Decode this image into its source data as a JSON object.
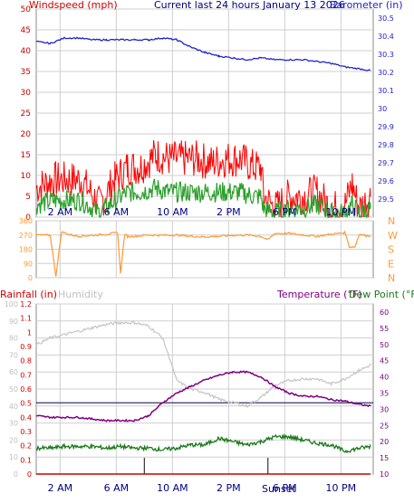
{
  "page": {
    "header": {
      "left": "Windspeed (mph)",
      "center": "Current last 24 hours January 13 2026",
      "right": "Barometer (in)"
    },
    "bottom_header": {
      "rainfall": "Rainfall (in)",
      "humidity": "Humidity",
      "temperature": "Temperature (°F)",
      "dewpoint": "Dew Point (°F)"
    },
    "sunset_label": "Sunset",
    "colors": {
      "windspeed": "#ff0000",
      "gust": "#ff0000",
      "wind_avg": "#2ca02c",
      "barometer": "#2222cc",
      "direction": "#ff9933",
      "humidity": "#c8c8c8",
      "temperature": "#800080",
      "dewpoint": "#1a7a1a",
      "rainfall": "#cc0000",
      "freezing": "#333366",
      "grid": "#cfcfcf",
      "axis_left": "#cc0000",
      "axis_right": "#2222cc"
    }
  },
  "chart_data": [
    {
      "type": "line",
      "title": "Current last 24 hours January 13 2026",
      "x_ticks": [
        "2 AM",
        "6 AM",
        "10 AM",
        "2 PM",
        "6 PM",
        "10 PM"
      ],
      "y_left": {
        "label": "Windspeed (mph)",
        "range": [
          0,
          50
        ],
        "ticks": [
          "0",
          "5",
          "10",
          "15",
          "20",
          "25",
          "30",
          "35",
          "40",
          "45",
          "50"
        ]
      },
      "y_right": {
        "label": "Barometer (in)",
        "range": [
          29.4,
          30.55
        ],
        "ticks": [
          "29.5",
          "29.6",
          "29.7",
          "29.8",
          "29.9",
          "30",
          "30.1",
          "30.2",
          "30.3",
          "30.4",
          "30.5"
        ]
      },
      "series": [
        {
          "name": "Windspeed (mph)",
          "axis": "left",
          "x": [
            0,
            1.2,
            2.5,
            3.2,
            4.5,
            5.6,
            6.5,
            7.4,
            8.5,
            9.5,
            10.5,
            11.5,
            12.5,
            13.5,
            14.5,
            15.5,
            16.0,
            16.2,
            17,
            18,
            19,
            20,
            21,
            22,
            22.5,
            23,
            23.8
          ],
          "y": [
            7,
            9,
            9,
            9,
            3,
            9,
            12,
            12,
            15,
            14,
            14,
            14,
            13,
            14,
            14,
            12,
            12,
            5,
            2,
            5,
            5,
            6,
            2,
            3,
            8,
            2,
            5
          ]
        },
        {
          "name": "Wind avg",
          "axis": "left",
          "x": [
            0,
            1.2,
            2.5,
            3.2,
            4.5,
            5.6,
            6.5,
            7.4,
            8.5,
            9.5,
            10.5,
            11.5,
            12.5,
            13.5,
            14.5,
            15.5,
            16.0,
            16.2,
            17,
            18,
            19,
            20,
            21,
            22,
            22.5,
            23,
            23.8
          ],
          "y": [
            3,
            4,
            4,
            4,
            1,
            4,
            6,
            6,
            7,
            6,
            6,
            6,
            6,
            6,
            6,
            5,
            5,
            2,
            1,
            2,
            2,
            3,
            1,
            1,
            3,
            1,
            2
          ]
        },
        {
          "name": "Barometer (in)",
          "axis": "right",
          "x": [
            0,
            1,
            2,
            3,
            4,
            5,
            6,
            7,
            8,
            9,
            10,
            11,
            12,
            13,
            14,
            15,
            16,
            17,
            18,
            19,
            20,
            21,
            22,
            23,
            23.8
          ],
          "y": [
            30.37,
            30.36,
            30.39,
            30.39,
            30.38,
            30.38,
            30.38,
            30.38,
            30.38,
            30.39,
            30.38,
            30.34,
            30.31,
            30.29,
            30.28,
            30.27,
            30.28,
            30.27,
            30.27,
            30.27,
            30.26,
            30.25,
            30.23,
            30.22,
            30.21
          ]
        }
      ]
    },
    {
      "type": "line",
      "y_left": {
        "range": [
          0,
          360
        ],
        "ticks": [
          "0",
          "90",
          "180",
          "270",
          "360"
        ]
      },
      "y_right": {
        "ticks": [
          "N",
          "E",
          "S",
          "W",
          "N"
        ]
      },
      "series": [
        {
          "name": "Wind direction",
          "x": [
            0,
            1,
            1.4,
            1.8,
            2.5,
            3,
            4,
            5,
            5.8,
            6,
            6.3,
            6.5,
            7,
            8,
            9,
            10,
            11,
            12,
            13,
            14,
            15,
            16,
            16.5,
            17,
            18,
            19,
            20,
            21,
            22,
            22.3,
            22.7,
            23,
            23.5,
            23.8
          ],
          "y": [
            270,
            268,
            10,
            290,
            270,
            262,
            268,
            275,
            285,
            30,
            275,
            260,
            262,
            270,
            268,
            270,
            262,
            258,
            262,
            268,
            270,
            262,
            240,
            280,
            280,
            270,
            262,
            275,
            285,
            195,
            195,
            275,
            265,
            265
          ]
        }
      ]
    },
    {
      "type": "line",
      "x_ticks": [
        "2 AM",
        "6 AM",
        "10 AM",
        "2 PM",
        "6 PM",
        "10 PM"
      ],
      "y_left_outer": {
        "label": "Humidity",
        "range": [
          0,
          100
        ],
        "ticks": [
          "0",
          "10",
          "20",
          "30",
          "40",
          "50",
          "60",
          "70",
          "80",
          "90",
          "100"
        ]
      },
      "y_left_inner": {
        "label": "Rainfall (in)",
        "range": [
          0,
          1.2
        ],
        "ticks": [
          "0",
          "0.1",
          "0.2",
          "0.3",
          "0.4",
          "0.5",
          "0.6",
          "0.7",
          "0.8",
          "0.9",
          "1",
          "1.1",
          "1.2"
        ]
      },
      "y_right": {
        "label": "Temperature (°F)",
        "range": [
          10,
          62.5
        ],
        "ticks": [
          "10",
          "15",
          "20",
          "25",
          "30",
          "35",
          "40",
          "45",
          "50",
          "55",
          "60"
        ]
      },
      "annotations": [
        "Sunset"
      ],
      "series": [
        {
          "name": "Humidity",
          "axis": "left",
          "x": [
            0,
            1,
            2,
            3,
            4,
            5,
            6,
            7,
            8,
            9,
            9.5,
            10,
            11,
            12,
            13,
            14,
            15,
            16,
            17,
            18,
            19,
            20,
            21,
            22,
            23,
            23.8
          ],
          "y": [
            76,
            80,
            82,
            84,
            86,
            88,
            89,
            89,
            87,
            80,
            68,
            55,
            50,
            48,
            44,
            42,
            40,
            45,
            52,
            55,
            56,
            56,
            53,
            56,
            61,
            64
          ]
        },
        {
          "name": "Temperature (°F)",
          "axis": "right",
          "x": [
            0,
            1,
            2,
            3,
            4,
            5,
            6,
            7,
            8,
            9,
            10,
            11,
            12,
            13,
            14,
            15,
            16,
            17,
            18,
            19,
            20,
            21,
            22,
            23,
            23.8
          ],
          "y": [
            28,
            27.5,
            27.5,
            27.5,
            27,
            26.5,
            26.5,
            26.5,
            28,
            32,
            35,
            37,
            39,
            40.5,
            41.5,
            41.5,
            40,
            37,
            35,
            34,
            34,
            33,
            32.5,
            31.5,
            31
          ]
        },
        {
          "name": "Dew Point (°F)",
          "axis": "right",
          "x": [
            0,
            1,
            2,
            3,
            4,
            5,
            6,
            7,
            8,
            9,
            10,
            11,
            12,
            13,
            14,
            15,
            16,
            17,
            18,
            19,
            20,
            21,
            22,
            23,
            23.8
          ],
          "y": [
            18,
            18,
            18.5,
            18.5,
            18.5,
            18,
            18.5,
            18,
            18,
            17.5,
            18,
            19,
            19,
            21,
            20,
            19,
            20,
            21.5,
            21.5,
            20.5,
            19.5,
            19,
            17,
            18,
            18.5
          ]
        },
        {
          "name": "Rainfall (in)",
          "axis": "left_inner",
          "x": [
            0,
            23.8
          ],
          "y": [
            0,
            0
          ]
        }
      ],
      "reference_lines": {
        "freezing_f": 32,
        "sun_times_h": [
          7.7,
          16.5
        ]
      }
    }
  ]
}
